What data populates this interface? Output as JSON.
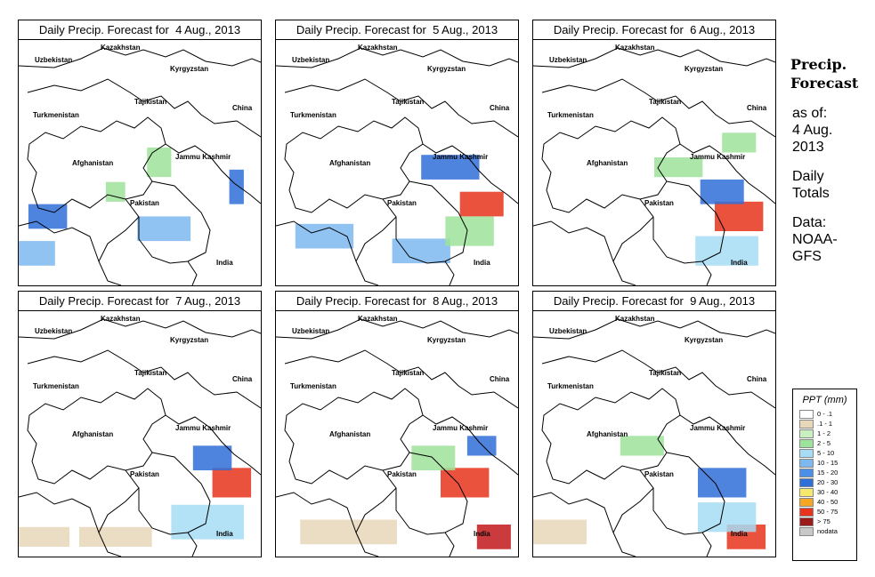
{
  "panels": [
    {
      "title": "Daily Precip. Forecast for  4 Aug., 2013",
      "hotspots": [
        [
          0.12,
          0.72,
          0.16,
          0.1,
          "#2f6fd8"
        ],
        [
          0.6,
          0.77,
          0.22,
          0.1,
          "#7db8f0"
        ],
        [
          0.58,
          0.5,
          0.1,
          0.12,
          "#9ee39a"
        ],
        [
          0.9,
          0.6,
          0.06,
          0.14,
          "#2f6fd8"
        ],
        [
          0.05,
          0.87,
          0.2,
          0.1,
          "#7db8f0"
        ],
        [
          0.4,
          0.62,
          0.08,
          0.08,
          "#9ee39a"
        ]
      ]
    },
    {
      "title": "Daily Precip. Forecast for  5 Aug., 2013",
      "hotspots": [
        [
          0.72,
          0.52,
          0.24,
          0.1,
          "#2f6fd8"
        ],
        [
          0.85,
          0.67,
          0.18,
          0.1,
          "#e8341c"
        ],
        [
          0.2,
          0.8,
          0.24,
          0.1,
          "#7db8f0"
        ],
        [
          0.6,
          0.86,
          0.24,
          0.1,
          "#7db8f0"
        ],
        [
          0.8,
          0.78,
          0.2,
          0.12,
          "#9ee39a"
        ]
      ]
    },
    {
      "title": "Daily Precip. Forecast for  6 Aug., 2013",
      "hotspots": [
        [
          0.85,
          0.72,
          0.2,
          0.12,
          "#e8341c"
        ],
        [
          0.78,
          0.62,
          0.18,
          0.1,
          "#2f6fd8"
        ],
        [
          0.8,
          0.86,
          0.26,
          0.12,
          "#a6dcf5"
        ],
        [
          0.6,
          0.52,
          0.2,
          0.08,
          "#9ee39a"
        ],
        [
          0.85,
          0.42,
          0.14,
          0.08,
          "#9ee39a"
        ]
      ]
    },
    {
      "title": "Daily Precip. Forecast for  7 Aug., 2013",
      "hotspots": [
        [
          0.88,
          0.7,
          0.16,
          0.12,
          "#e8341c"
        ],
        [
          0.8,
          0.6,
          0.16,
          0.1,
          "#2f6fd8"
        ],
        [
          0.78,
          0.86,
          0.3,
          0.14,
          "#a6dcf5"
        ],
        [
          0.4,
          0.92,
          0.3,
          0.08,
          "#e8d7b9"
        ],
        [
          0.1,
          0.92,
          0.22,
          0.08,
          "#e8d7b9"
        ]
      ]
    },
    {
      "title": "Daily Precip. Forecast for  8 Aug., 2013",
      "hotspots": [
        [
          0.9,
          0.92,
          0.14,
          0.1,
          "#c2191b"
        ],
        [
          0.78,
          0.7,
          0.2,
          0.12,
          "#e8341c"
        ],
        [
          0.65,
          0.6,
          0.18,
          0.1,
          "#9ee39a"
        ],
        [
          0.3,
          0.9,
          0.4,
          0.1,
          "#e8d7b9"
        ],
        [
          0.85,
          0.55,
          0.12,
          0.08,
          "#2f6fd8"
        ]
      ]
    },
    {
      "title": "Daily Precip. Forecast for  9 Aug., 2013",
      "hotspots": [
        [
          0.88,
          0.92,
          0.16,
          0.1,
          "#e8341c"
        ],
        [
          0.78,
          0.7,
          0.2,
          0.12,
          "#2f6fd8"
        ],
        [
          0.8,
          0.84,
          0.24,
          0.12,
          "#a6dcf5"
        ],
        [
          0.1,
          0.9,
          0.24,
          0.1,
          "#e8d7b9"
        ],
        [
          0.45,
          0.55,
          0.18,
          0.08,
          "#9ee39a"
        ]
      ]
    }
  ],
  "map_labels": {
    "kazakhstan": "Kazakhstan",
    "uzbekistan": "Uzbekistan",
    "kyrgyzstan": "Kyrgyzstan",
    "tajikistan": "Tajikistan",
    "turkmenistan": "Turkmenistan",
    "china": "China",
    "jammu_kashmir": "Jammu Kashmir",
    "afghanistan": "Afghanistan",
    "pakistan": "Pakistan",
    "india": "India"
  },
  "side": {
    "heading1": "Precip.",
    "heading2": "Forecast",
    "asof1": "as of:",
    "asof2": "4 Aug.",
    "asof3": "2013",
    "totals1": "Daily",
    "totals2": "Totals",
    "data1": "Data:",
    "data2": "NOAA-",
    "data3": "GFS"
  },
  "legend": {
    "title": "PPT (mm)",
    "items": [
      {
        "label": "0 - .1",
        "color": "#ffffff"
      },
      {
        "label": ".1 - 1",
        "color": "#e8d7b9"
      },
      {
        "label": "1 - 2",
        "color": "#c8f0c0"
      },
      {
        "label": "2 - 5",
        "color": "#9ee39a"
      },
      {
        "label": "5 - 10",
        "color": "#a6dcf5"
      },
      {
        "label": "10 - 15",
        "color": "#7db8f0"
      },
      {
        "label": "15 - 20",
        "color": "#4a8fe8"
      },
      {
        "label": "20 - 30",
        "color": "#2f6fd8"
      },
      {
        "label": "30 - 40",
        "color": "#f5e86a"
      },
      {
        "label": "40 - 50",
        "color": "#f5a623"
      },
      {
        "label": "50 - 75",
        "color": "#e8341c"
      },
      {
        "label": "> 75",
        "color": "#9b1b1b"
      },
      {
        "label": "nodata",
        "color": "#c8c8c8"
      }
    ]
  }
}
